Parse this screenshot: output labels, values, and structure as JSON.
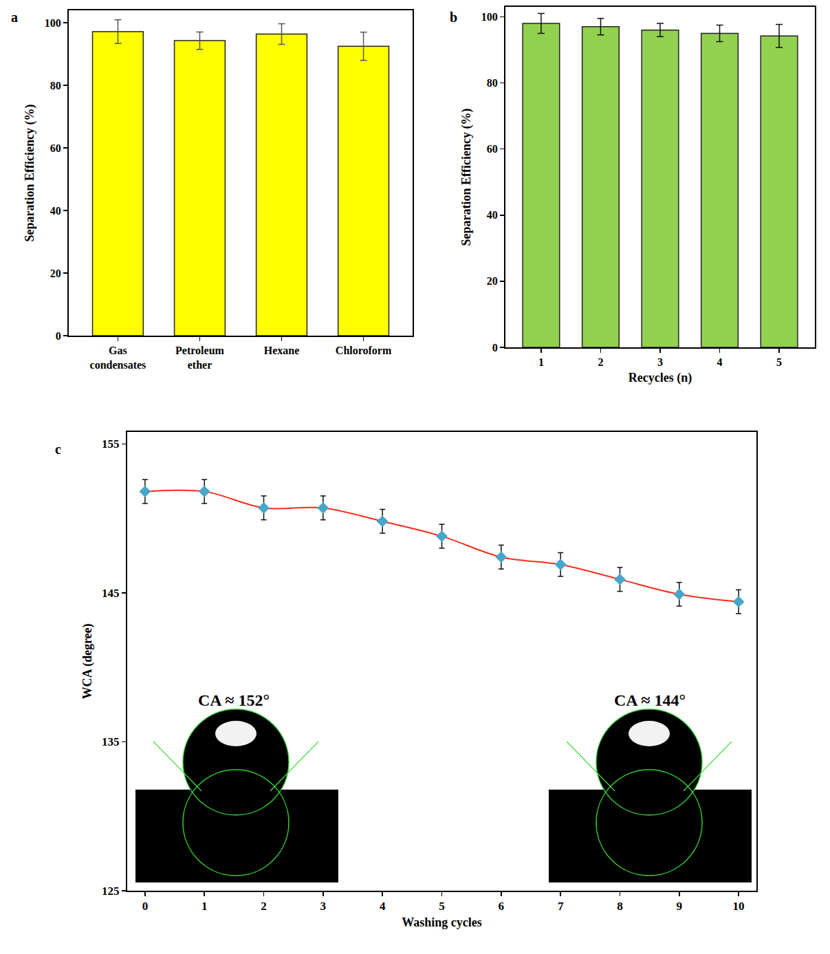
{
  "chart_data": [
    {
      "type": "bar",
      "title": "a",
      "categories": [
        "Gas condensates",
        "Petroleum ether",
        "Hexane",
        "Chloroform"
      ],
      "values": [
        97.2,
        94.3,
        96.4,
        92.5
      ],
      "errors": [
        3.8,
        2.8,
        3.3,
        4.5
      ],
      "color": "#ffff00",
      "y_label": "Separation Efficiency (%)",
      "ylim": [
        0,
        104
      ],
      "yticks": [
        0,
        20,
        40,
        60,
        80,
        100
      ],
      "grid": false
    },
    {
      "type": "bar",
      "title": "b",
      "categories": [
        "1",
        "2",
        "3",
        "4",
        "5"
      ],
      "values": [
        98,
        97,
        96,
        95,
        94.2
      ],
      "errors": [
        3,
        2.5,
        2,
        2.5,
        3.5
      ],
      "color": "#92d050",
      "x_label": "Recycles (n)",
      "y_label": "Separation Efficiency (%)",
      "ylim": [
        0,
        103
      ],
      "yticks": [
        0,
        20,
        40,
        60,
        80,
        100
      ],
      "grid": false
    },
    {
      "type": "line",
      "title": "c",
      "x": [
        0,
        1,
        2,
        3,
        4,
        5,
        6,
        7,
        8,
        9,
        10
      ],
      "values": [
        151.8,
        151.8,
        150.7,
        150.7,
        149.8,
        148.8,
        147.4,
        146.9,
        145.9,
        144.9,
        144.4
      ],
      "errors": [
        0.8,
        0.8,
        0.8,
        0.8,
        0.8,
        0.8,
        0.8,
        0.8,
        0.8,
        0.8,
        0.8
      ],
      "color": "#ff2a1a",
      "marker": "diamond",
      "line_style": "solid",
      "x_label": "Washing cycles",
      "y_label": "WCA (degree)",
      "xlim": [
        -0.3,
        10.3
      ],
      "xticks": [
        0,
        1,
        2,
        3,
        4,
        5,
        6,
        7,
        8,
        9,
        10
      ],
      "ylim": [
        125,
        155.8
      ],
      "yticks": [
        125,
        135,
        145,
        155
      ],
      "grid": false,
      "annotations": [
        {
          "text": "CA ≈ 152°",
          "x": 1.5,
          "y": 137.8
        },
        {
          "text": "CA ≈ 144°",
          "x": 8.5,
          "y": 137.8
        }
      ]
    }
  ]
}
